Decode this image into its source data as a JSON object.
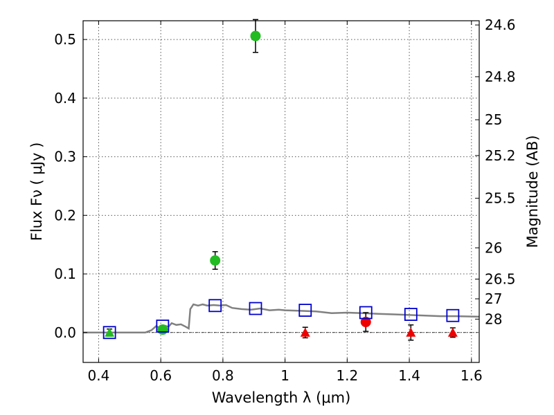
{
  "chart_data": {
    "type": "scatter",
    "title": "",
    "xlabel": "Wavelength  λ (μm)",
    "ylabel": "Flux  Fν  ( μJy )",
    "ylabel_right": "Magnitude (AB)",
    "xlim": [
      0.35,
      1.625
    ],
    "ylim": [
      -0.051,
      0.532
    ],
    "x_ticks": [
      0.4,
      0.6,
      0.8,
      1.0,
      1.2,
      1.4,
      1.6
    ],
    "x_tick_labels": [
      "0.4",
      "0.6",
      "0.8",
      "1",
      "1.2",
      "1.4",
      "1.6"
    ],
    "y_ticks": [
      0.0,
      0.1,
      0.2,
      0.3,
      0.4,
      0.5
    ],
    "y_tick_labels": [
      "0.0",
      "0.1",
      "0.2",
      "0.3",
      "0.4",
      "0.5"
    ],
    "magnitude_ticks": [
      {
        "label": "24.6",
        "mag": 24.6
      },
      {
        "label": "24.8",
        "mag": 24.8
      },
      {
        "label": "25",
        "mag": 25.0
      },
      {
        "label": "25.2",
        "mag": 25.2
      },
      {
        "label": "25.5",
        "mag": 25.5
      },
      {
        "label": "26",
        "mag": 26.0
      },
      {
        "label": "26.5",
        "mag": 26.5
      },
      {
        "label": "27",
        "mag": 27.0
      },
      {
        "label": "28",
        "mag": 28.0
      }
    ],
    "grid": true,
    "colors": {
      "detection": "#22bb22",
      "upper_limit": "#ee0000",
      "model_band": "#0000cc",
      "model_spectrum": "#808080",
      "errorbar": "#000000"
    },
    "series": [
      {
        "marker": "circle",
        "color": "#22bb22",
        "points": [
          {
            "x": 0.606,
            "y": 0.005,
            "err": 0.007
          },
          {
            "x": 0.775,
            "y": 0.123,
            "err": 0.015
          },
          {
            "x": 0.905,
            "y": 0.506,
            "err": 0.028
          }
        ]
      },
      {
        "marker": "triangle",
        "color": "#22bb22",
        "points": [
          {
            "x": 0.435,
            "y": 0.0,
            "err": 0.006
          }
        ]
      },
      {
        "marker": "circle",
        "color": "#ee0000",
        "points": [
          {
            "x": 1.26,
            "y": 0.018,
            "err": 0.016
          }
        ]
      },
      {
        "marker": "triangle",
        "color": "#ee0000",
        "points": [
          {
            "x": 1.065,
            "y": 0.0,
            "err": 0.009
          },
          {
            "x": 1.405,
            "y": 0.0,
            "err": 0.013
          },
          {
            "x": 1.54,
            "y": 0.0,
            "err": 0.008
          }
        ]
      },
      {
        "marker": "square",
        "color": "#0000cc",
        "points": [
          {
            "x": 0.435,
            "y": 0.0
          },
          {
            "x": 0.606,
            "y": 0.011
          },
          {
            "x": 0.775,
            "y": 0.046
          },
          {
            "x": 0.905,
            "y": 0.041
          },
          {
            "x": 1.065,
            "y": 0.038
          },
          {
            "x": 1.26,
            "y": 0.034
          },
          {
            "x": 1.405,
            "y": 0.031
          },
          {
            "x": 1.54,
            "y": 0.029
          }
        ]
      },
      {
        "marker": "line",
        "color": "#808080",
        "points": [
          {
            "x": 0.35,
            "y": 0.0
          },
          {
            "x": 0.55,
            "y": 0.0
          },
          {
            "x": 0.57,
            "y": 0.004
          },
          {
            "x": 0.585,
            "y": 0.011
          },
          {
            "x": 0.6,
            "y": 0.007
          },
          {
            "x": 0.61,
            "y": 0.012
          },
          {
            "x": 0.625,
            "y": 0.01
          },
          {
            "x": 0.635,
            "y": 0.016
          },
          {
            "x": 0.65,
            "y": 0.013
          },
          {
            "x": 0.665,
            "y": 0.014
          },
          {
            "x": 0.68,
            "y": 0.01
          },
          {
            "x": 0.69,
            "y": 0.007
          },
          {
            "x": 0.695,
            "y": 0.04
          },
          {
            "x": 0.705,
            "y": 0.048
          },
          {
            "x": 0.72,
            "y": 0.046
          },
          {
            "x": 0.735,
            "y": 0.048
          },
          {
            "x": 0.75,
            "y": 0.046
          },
          {
            "x": 0.77,
            "y": 0.047
          },
          {
            "x": 0.79,
            "y": 0.046
          },
          {
            "x": 0.81,
            "y": 0.047
          },
          {
            "x": 0.83,
            "y": 0.042
          },
          {
            "x": 0.86,
            "y": 0.04
          },
          {
            "x": 0.89,
            "y": 0.039
          },
          {
            "x": 0.92,
            "y": 0.041
          },
          {
            "x": 0.95,
            "y": 0.038
          },
          {
            "x": 0.98,
            "y": 0.039
          },
          {
            "x": 1.0,
            "y": 0.038
          },
          {
            "x": 1.05,
            "y": 0.037
          },
          {
            "x": 1.1,
            "y": 0.036
          },
          {
            "x": 1.15,
            "y": 0.033
          },
          {
            "x": 1.2,
            "y": 0.034
          },
          {
            "x": 1.25,
            "y": 0.033
          },
          {
            "x": 1.3,
            "y": 0.032
          },
          {
            "x": 1.35,
            "y": 0.031
          },
          {
            "x": 1.4,
            "y": 0.03
          },
          {
            "x": 1.45,
            "y": 0.029
          },
          {
            "x": 1.5,
            "y": 0.028
          },
          {
            "x": 1.55,
            "y": 0.028
          },
          {
            "x": 1.625,
            "y": 0.027
          }
        ]
      }
    ]
  }
}
